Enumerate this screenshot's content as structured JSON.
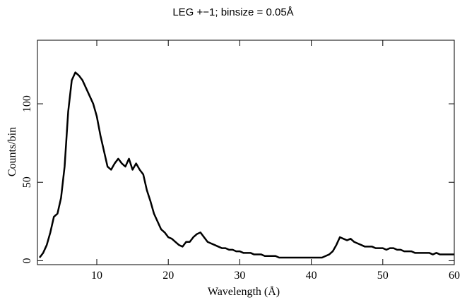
{
  "chart_data": {
    "type": "line",
    "title": "LEG +−1; binsize = 0.05Å",
    "x_label": "Wavelength (Å)",
    "y_label": "Counts/bin",
    "x": [
      2,
      2.5,
      3,
      3.5,
      4,
      4.5,
      5,
      5.5,
      6,
      6.5,
      7,
      7.5,
      8,
      8.5,
      9,
      9.5,
      10,
      10.5,
      11,
      11.5,
      12,
      12.5,
      13,
      13.5,
      14,
      14.5,
      15,
      15.5,
      16,
      16.5,
      17,
      17.5,
      18,
      18.5,
      19,
      19.5,
      20,
      20.5,
      21,
      21.5,
      22,
      22.5,
      23,
      23.5,
      24,
      24.5,
      25,
      25.5,
      26,
      26.5,
      27,
      27.5,
      28,
      28.5,
      29,
      29.5,
      30,
      30.5,
      31,
      31.5,
      32,
      32.5,
      33,
      33.5,
      34,
      34.5,
      35,
      35.5,
      36,
      36.5,
      37,
      37.5,
      38,
      38.5,
      39,
      39.5,
      40,
      40.5,
      41,
      41.5,
      42,
      42.5,
      43,
      43.5,
      44,
      44.5,
      45,
      45.5,
      46,
      46.5,
      47,
      47.5,
      48,
      48.5,
      49,
      49.5,
      50,
      50.5,
      51,
      51.5,
      52,
      52.5,
      53,
      53.5,
      54,
      54.5,
      55,
      55.5,
      56,
      56.5,
      57,
      57.5,
      58,
      58.5,
      59,
      59.5,
      60
    ],
    "series": [
      {
        "color": "#000000",
        "values": [
          2,
          5,
          10,
          18,
          28,
          30,
          40,
          60,
          95,
          115,
          120,
          118,
          115,
          110,
          105,
          100,
          92,
          80,
          70,
          60,
          58,
          62,
          65,
          62,
          60,
          65,
          58,
          62,
          58,
          55,
          45,
          38,
          30,
          25,
          20,
          18,
          15,
          14,
          12,
          10,
          9,
          12,
          12,
          15,
          17,
          18,
          15,
          12,
          11,
          10,
          9,
          8,
          8,
          7,
          7,
          6,
          6,
          5,
          5,
          5,
          4,
          4,
          4,
          3,
          3,
          3,
          3,
          2,
          2,
          2,
          2,
          2,
          2,
          2,
          2,
          2,
          2,
          2,
          2,
          2,
          3,
          4,
          6,
          10,
          15,
          14,
          13,
          14,
          12,
          11,
          10,
          9,
          9,
          9,
          8,
          8,
          8,
          7,
          8,
          8,
          7,
          7,
          6,
          6,
          6,
          5,
          5,
          5,
          5,
          5,
          4,
          5,
          4,
          4,
          4,
          4,
          4
        ]
      }
    ],
    "xlim": [
      1.7,
      60
    ],
    "ylim": [
      -2.5,
      140.5
    ],
    "xticks": [
      10,
      20,
      30,
      40,
      50,
      60
    ],
    "yticks": [
      0,
      50,
      100
    ]
  }
}
